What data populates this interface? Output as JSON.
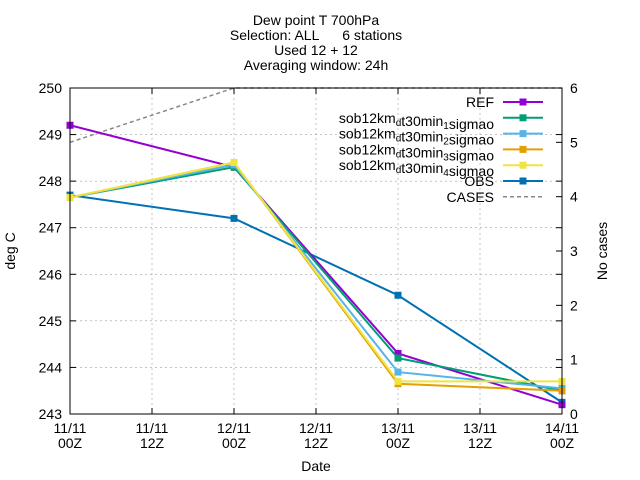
{
  "chart_data": {
    "type": "line",
    "title": [
      "Dew point T 700hPa",
      "Selection: ALL      6 stations",
      "Used 12 + 12",
      "Averaging window: 24h"
    ],
    "xlabel": "Date",
    "ylabel": "deg C",
    "y2label": "No cases",
    "ylim": [
      243,
      250
    ],
    "y2lim": [
      0,
      6
    ],
    "xlim": [
      0,
      72
    ],
    "x_ticks": [
      {
        "x": 0,
        "line1": "11/11",
        "line2": "00Z"
      },
      {
        "x": 12,
        "line1": "11/11",
        "line2": "12Z"
      },
      {
        "x": 24,
        "line1": "12/11",
        "line2": "00Z"
      },
      {
        "x": 36,
        "line1": "12/11",
        "line2": "12Z"
      },
      {
        "x": 48,
        "line1": "13/11",
        "line2": "00Z"
      },
      {
        "x": 60,
        "line1": "13/11",
        "line2": "12Z"
      },
      {
        "x": 72,
        "line1": "14/11",
        "line2": "00Z"
      }
    ],
    "y_ticks": [
      243,
      244,
      245,
      246,
      247,
      248,
      249,
      250
    ],
    "y2_ticks": [
      0,
      1,
      2,
      3,
      4,
      5,
      6
    ],
    "grid": true,
    "legend_position": "top-right",
    "series": [
      {
        "name": "REF",
        "parts": [
          {
            "text": "REF"
          }
        ],
        "color": "#9400d3",
        "marker": "square",
        "x": [
          0,
          24,
          48,
          72
        ],
        "values": [
          249.2,
          248.3,
          244.3,
          243.2
        ]
      },
      {
        "name": "sob12kmdt30min1sigmao",
        "parts": [
          {
            "text": "sob12km"
          },
          {
            "text": "d",
            "sub": true
          },
          {
            "text": "t30min"
          },
          {
            "text": "1",
            "sub": true
          },
          {
            "text": "sigmao"
          }
        ],
        "color": "#009e73",
        "marker": "square",
        "x": [
          0,
          24,
          48,
          72
        ],
        "values": [
          247.65,
          248.3,
          244.2,
          243.5
        ]
      },
      {
        "name": "sob12kmdt30min2sigmao",
        "parts": [
          {
            "text": "sob12km"
          },
          {
            "text": "d",
            "sub": true
          },
          {
            "text": "t30min"
          },
          {
            "text": "2",
            "sub": true
          },
          {
            "text": "sigmao"
          }
        ],
        "color": "#56b4e9",
        "marker": "square",
        "x": [
          0,
          24,
          48,
          72
        ],
        "values": [
          247.65,
          248.35,
          243.9,
          243.55
        ]
      },
      {
        "name": "sob12kmdt30min3sigmao",
        "parts": [
          {
            "text": "sob12km"
          },
          {
            "text": "d",
            "sub": true
          },
          {
            "text": "t30min"
          },
          {
            "text": "3",
            "sub": true
          },
          {
            "text": "sigmao"
          }
        ],
        "color": "#e69f00",
        "marker": "square",
        "x": [
          0,
          24,
          48,
          72
        ],
        "values": [
          247.65,
          248.4,
          243.65,
          243.5
        ]
      },
      {
        "name": "sob12kmdt30min4sigmao",
        "parts": [
          {
            "text": "sob12km"
          },
          {
            "text": "d",
            "sub": true
          },
          {
            "text": "t30min"
          },
          {
            "text": "4",
            "sub": true
          },
          {
            "text": "sigmao"
          }
        ],
        "color": "#f0e442",
        "marker": "square",
        "x": [
          0,
          24,
          48,
          72
        ],
        "values": [
          247.65,
          248.4,
          243.7,
          243.7
        ]
      },
      {
        "name": "OBS",
        "parts": [
          {
            "text": "OBS"
          }
        ],
        "color": "#0072b2",
        "marker": "square",
        "x": [
          0,
          24,
          48,
          72
        ],
        "values": [
          247.7,
          247.2,
          245.55,
          243.25
        ]
      },
      {
        "name": "CASES",
        "parts": [
          {
            "text": "CASES"
          }
        ],
        "color": "#888888",
        "axis": "y2",
        "dashed": true,
        "x": [
          0,
          24,
          48,
          72
        ],
        "values": [
          5,
          6,
          6,
          6
        ]
      }
    ]
  }
}
